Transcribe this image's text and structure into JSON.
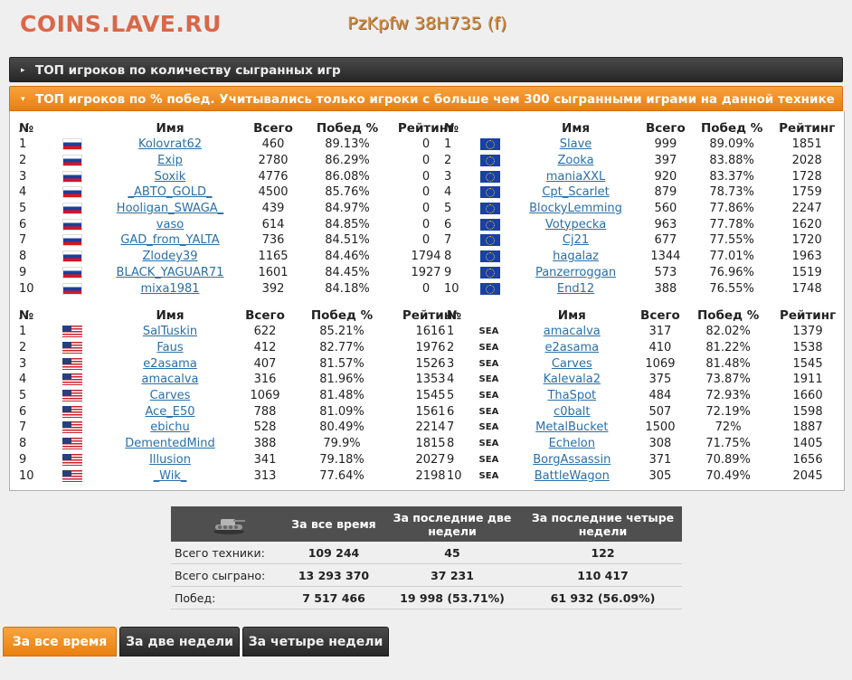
{
  "header": {
    "site": "COINS.LAVE.RU",
    "tank": "PzKpfw 38H735 (f)"
  },
  "accordion": {
    "closed_title": "ТОП игроков по количеству сыгранных игр",
    "open_title": "ТОП игроков по % побед. Учитывались только игроки с больше чем 300 сыгранными играми на данной технике"
  },
  "columns": {
    "num": "№",
    "name": "Имя",
    "total": "Всего",
    "wins": "Побед %",
    "rating": "Рейтинг"
  },
  "tables": {
    "ru": {
      "flag": "ru",
      "rows": [
        {
          "n": "1",
          "name": "Kolovrat62",
          "total": "460",
          "wins": "89.13%",
          "rating": "0"
        },
        {
          "n": "2",
          "name": "Exip",
          "total": "2780",
          "wins": "86.29%",
          "rating": "0"
        },
        {
          "n": "3",
          "name": "Soxik",
          "total": "4776",
          "wins": "86.08%",
          "rating": "0"
        },
        {
          "n": "4",
          "name": "_ABTO_GOLD_",
          "total": "4500",
          "wins": "85.76%",
          "rating": "0"
        },
        {
          "n": "5",
          "name": "Hooligan_SWAGA_",
          "total": "439",
          "wins": "84.97%",
          "rating": "0"
        },
        {
          "n": "6",
          "name": "vaso",
          "total": "614",
          "wins": "84.85%",
          "rating": "0"
        },
        {
          "n": "7",
          "name": "GAD_from_YALTA",
          "total": "736",
          "wins": "84.51%",
          "rating": "0"
        },
        {
          "n": "8",
          "name": "Zlodey39",
          "total": "1165",
          "wins": "84.46%",
          "rating": "1794"
        },
        {
          "n": "9",
          "name": "BLACK_YAGUAR71",
          "total": "1601",
          "wins": "84.45%",
          "rating": "1927"
        },
        {
          "n": "10",
          "name": "mixa1981",
          "total": "392",
          "wins": "84.18%",
          "rating": "0"
        }
      ]
    },
    "eu": {
      "flag": "eu",
      "rows": [
        {
          "n": "1",
          "name": "Slave",
          "total": "999",
          "wins": "89.09%",
          "rating": "1851"
        },
        {
          "n": "2",
          "name": "Zooka",
          "total": "397",
          "wins": "83.88%",
          "rating": "2028"
        },
        {
          "n": "3",
          "name": "maniaXXL",
          "total": "920",
          "wins": "83.37%",
          "rating": "1728"
        },
        {
          "n": "4",
          "name": "Cpt_Scarlet",
          "total": "879",
          "wins": "78.73%",
          "rating": "1759"
        },
        {
          "n": "5",
          "name": "BlockyLemming",
          "total": "560",
          "wins": "77.86%",
          "rating": "2247"
        },
        {
          "n": "6",
          "name": "Votypecka",
          "total": "963",
          "wins": "77.78%",
          "rating": "1620"
        },
        {
          "n": "7",
          "name": "Cj21",
          "total": "677",
          "wins": "77.55%",
          "rating": "1720"
        },
        {
          "n": "8",
          "name": "hagalaz",
          "total": "1344",
          "wins": "77.01%",
          "rating": "1963"
        },
        {
          "n": "9",
          "name": "Panzerroggan",
          "total": "573",
          "wins": "76.96%",
          "rating": "1519"
        },
        {
          "n": "10",
          "name": "End12",
          "total": "388",
          "wins": "76.55%",
          "rating": "1748"
        }
      ]
    },
    "us": {
      "flag": "us",
      "rows": [
        {
          "n": "1",
          "name": "SalTuskin",
          "total": "622",
          "wins": "85.21%",
          "rating": "1616"
        },
        {
          "n": "2",
          "name": "Faus",
          "total": "412",
          "wins": "82.77%",
          "rating": "1976"
        },
        {
          "n": "3",
          "name": "e2asama",
          "total": "407",
          "wins": "81.57%",
          "rating": "1526"
        },
        {
          "n": "4",
          "name": "amacalva",
          "total": "316",
          "wins": "81.96%",
          "rating": "1353"
        },
        {
          "n": "5",
          "name": "Carves",
          "total": "1069",
          "wins": "81.48%",
          "rating": "1545"
        },
        {
          "n": "6",
          "name": "Ace_E50",
          "total": "788",
          "wins": "81.09%",
          "rating": "1561"
        },
        {
          "n": "7",
          "name": "ebichu",
          "total": "528",
          "wins": "80.49%",
          "rating": "2214"
        },
        {
          "n": "8",
          "name": "DementedMind",
          "total": "388",
          "wins": "79.9%",
          "rating": "1815"
        },
        {
          "n": "9",
          "name": "Illusion",
          "total": "341",
          "wins": "79.18%",
          "rating": "2027"
        },
        {
          "n": "10",
          "name": "_Wik_",
          "total": "313",
          "wins": "77.64%",
          "rating": "2198"
        }
      ]
    },
    "sea": {
      "flag": "sea",
      "flag_text": "SEA",
      "rows": [
        {
          "n": "1",
          "name": "amacalva",
          "total": "317",
          "wins": "82.02%",
          "rating": "1379"
        },
        {
          "n": "2",
          "name": "e2asama",
          "total": "410",
          "wins": "81.22%",
          "rating": "1538"
        },
        {
          "n": "3",
          "name": "Carves",
          "total": "1069",
          "wins": "81.48%",
          "rating": "1545"
        },
        {
          "n": "4",
          "name": "Kalevala2",
          "total": "375",
          "wins": "73.87%",
          "rating": "1911"
        },
        {
          "n": "5",
          "name": "ThaSpot",
          "total": "484",
          "wins": "72.93%",
          "rating": "1660"
        },
        {
          "n": "6",
          "name": "c0balt",
          "total": "507",
          "wins": "72.19%",
          "rating": "1598"
        },
        {
          "n": "7",
          "name": "MetalBucket",
          "total": "1500",
          "wins": "72%",
          "rating": "1887"
        },
        {
          "n": "8",
          "name": "Echelon",
          "total": "308",
          "wins": "71.75%",
          "rating": "1405"
        },
        {
          "n": "9",
          "name": "BorgAssassin",
          "total": "371",
          "wins": "70.89%",
          "rating": "1656"
        },
        {
          "n": "10",
          "name": "BattleWagon",
          "total": "305",
          "wins": "70.49%",
          "rating": "2045"
        }
      ]
    }
  },
  "stats": {
    "headers": [
      "За все время",
      "За последние две недели",
      "За последние четыре недели"
    ],
    "rows": [
      {
        "label": "Всего техники:",
        "values": [
          "109 244",
          "45",
          "122"
        ]
      },
      {
        "label": "Всего сыграно:",
        "values": [
          "13 293 370",
          "37 231",
          "110 417"
        ]
      },
      {
        "label": "Побед:",
        "values": [
          "7 517 466",
          "19 998 (53.71%)",
          "61 932 (56.09%)"
        ]
      }
    ]
  },
  "tabs": [
    "За все время",
    "За две недели",
    "За четыре недели"
  ],
  "active_tab": 0
}
